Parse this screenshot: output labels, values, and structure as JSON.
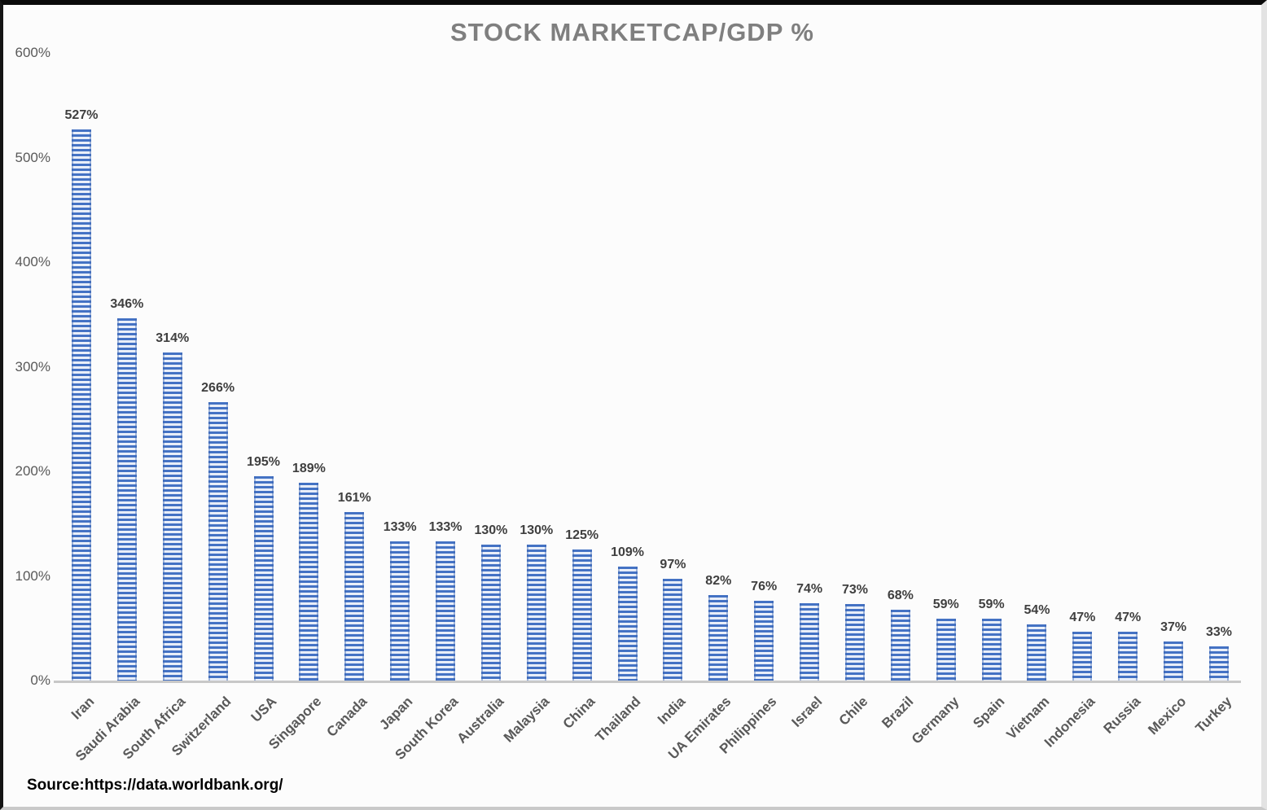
{
  "chart_data": {
    "type": "bar",
    "title": "STOCK MARKETCAP/GDP %",
    "unit": "%",
    "categories": [
      "Iran",
      "Saudi Arabia",
      "South Africa",
      "Switzerland",
      "USA",
      "Singapore",
      "Canada",
      "Japan",
      "South Korea",
      "Australia",
      "Malaysia",
      "China",
      "Thailand",
      "India",
      "UA Emirates",
      "Philippines",
      "Israel",
      "Chile",
      "Brazil",
      "Germany",
      "Spain",
      "Vietnam",
      "Indonesia",
      "Russia",
      "Mexico",
      "Turkey"
    ],
    "values": [
      527,
      346,
      314,
      266,
      195,
      189,
      161,
      133,
      133,
      130,
      130,
      125,
      109,
      97,
      82,
      76,
      74,
      73,
      68,
      59,
      59,
      54,
      47,
      47,
      37,
      33
    ],
    "y_ticks": [
      0,
      100,
      200,
      300,
      400,
      500,
      600
    ],
    "y_tick_labels": [
      "0%",
      "100%",
      "200%",
      "300%",
      "400%",
      "500%",
      "600%"
    ],
    "ylim": [
      0,
      600
    ],
    "grid": false,
    "legend_position": "none",
    "bar_color": "#4472c4",
    "bar_stripe_light": "#eef2fa",
    "title_color": "#7f7f7f",
    "value_label_color": "#3f3f3f",
    "axis_label_color": "#595959",
    "baseline_color": "#c8c8c8",
    "source": "Source:https://data.worldbank.org/"
  }
}
